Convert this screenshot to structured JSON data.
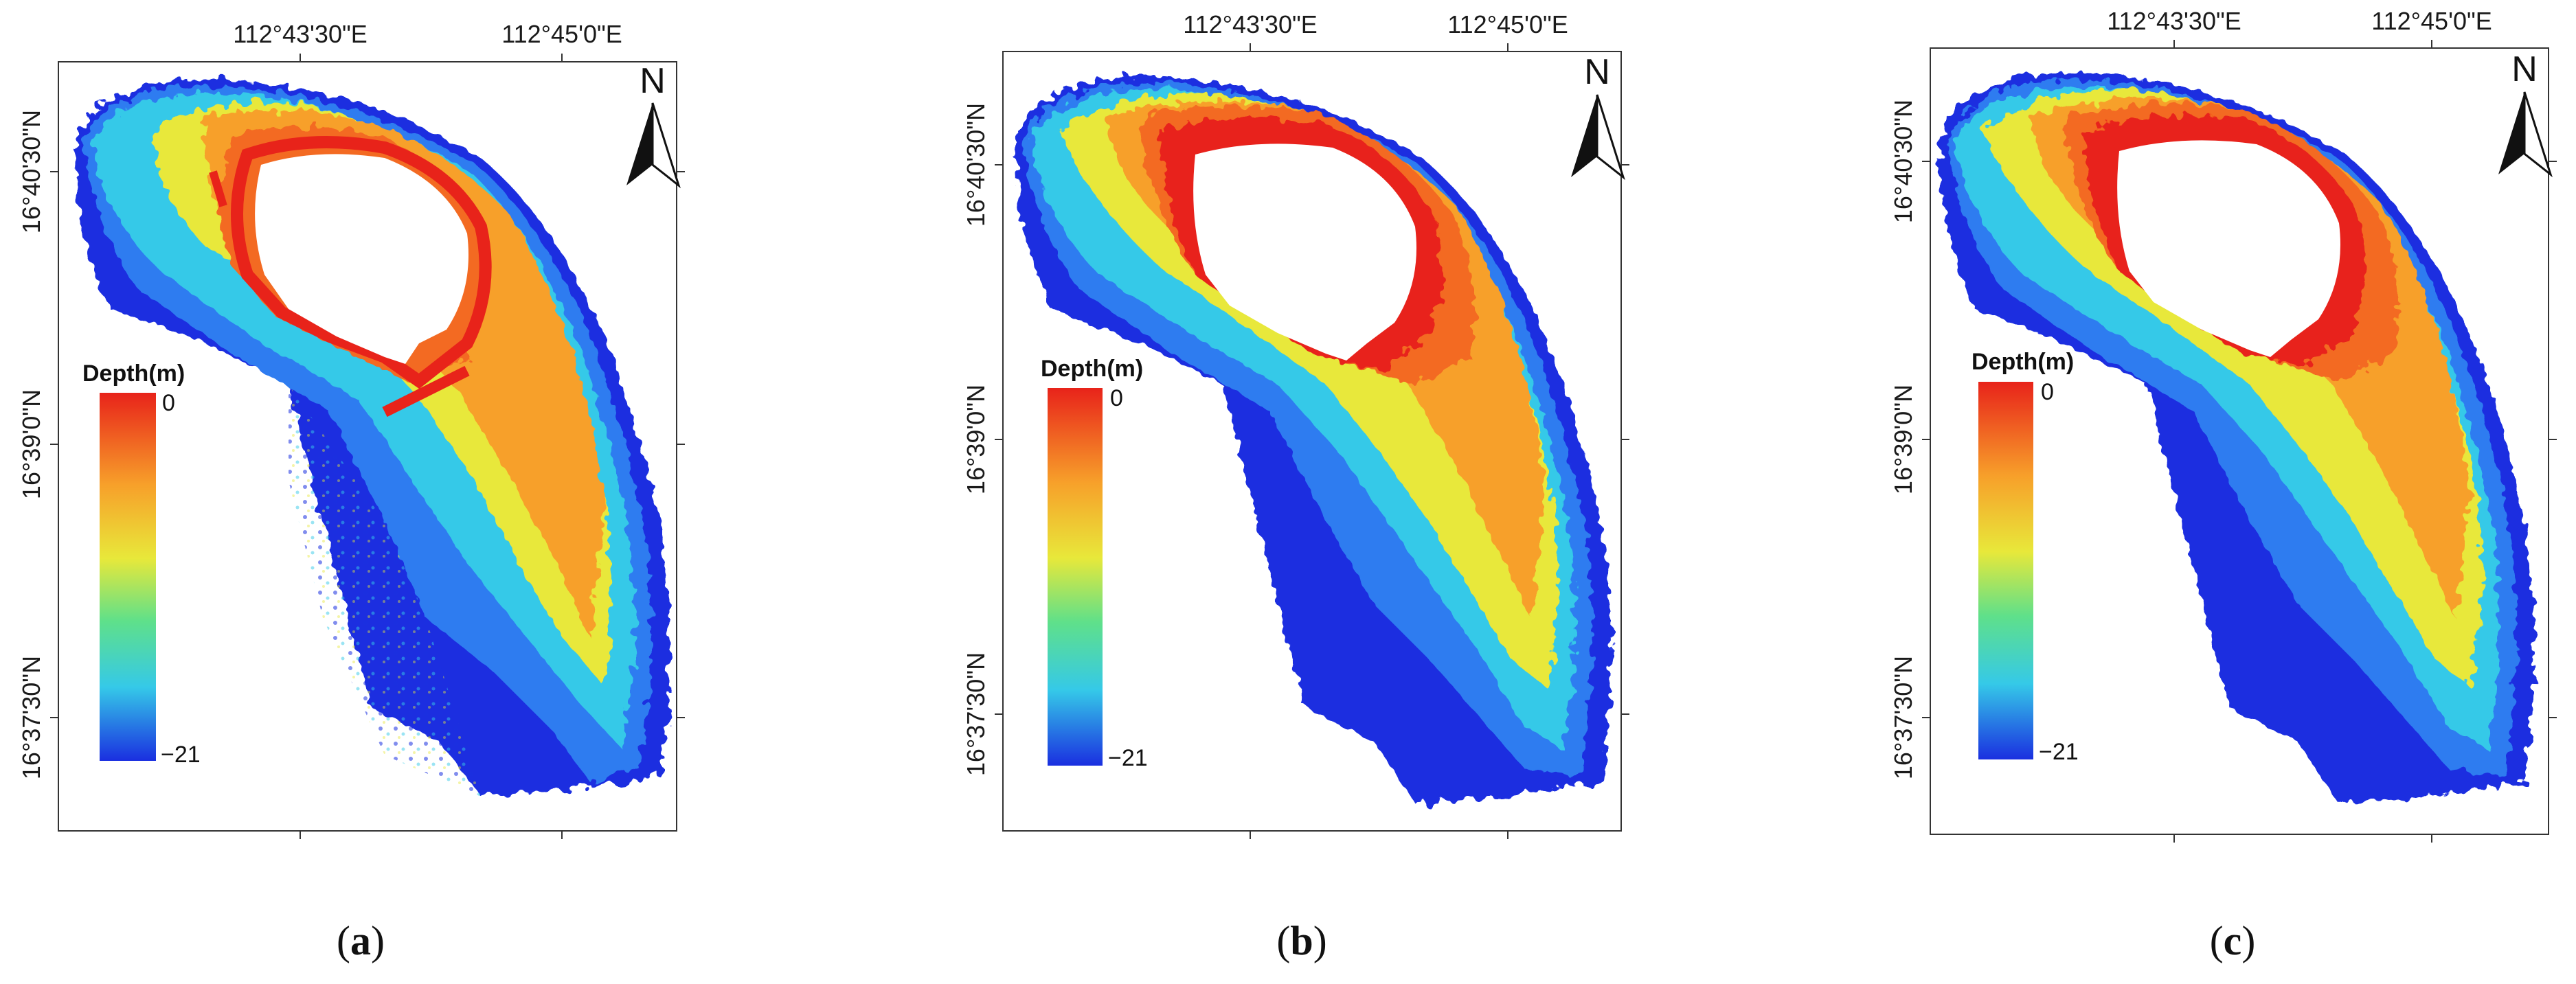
{
  "figure": {
    "panels": [
      {
        "id": "a",
        "caption_open": "(",
        "caption_letter": "a",
        "caption_close": ")",
        "x_ticks": [
          "112°43'30\"E",
          "112°45'0\"E"
        ],
        "y_ticks": [
          "16°40'30\"N",
          "16°39'0\"N",
          "16°37'30\"N"
        ],
        "legend": {
          "title": "Depth(m)",
          "max_label": "0",
          "min_label": "−21"
        },
        "north_label": "N"
      },
      {
        "id": "b",
        "caption_open": "(",
        "caption_letter": "b",
        "caption_close": ")",
        "x_ticks": [
          "112°43'30\"E",
          "112°45'0\"E"
        ],
        "y_ticks": [
          "16°40'30\"N",
          "16°39'0\"N",
          "16°37'30\"N"
        ],
        "legend": {
          "title": "Depth(m)",
          "max_label": "0",
          "min_label": "−21"
        },
        "north_label": "N"
      },
      {
        "id": "c",
        "caption_open": "(",
        "caption_letter": "c",
        "caption_close": ")",
        "x_ticks": [
          "112°43'30\"E",
          "112°45'0\"E"
        ],
        "y_ticks": [
          "16°40'30\"N",
          "16°39'0\"N",
          "16°37'30\"N"
        ],
        "legend": {
          "title": "Depth(m)",
          "max_label": "0",
          "min_label": "−21"
        },
        "north_label": "N"
      }
    ],
    "colors": {
      "deep": "#1a2fe0",
      "mid_blue": "#2f7cf0",
      "cyan": "#35c9e8",
      "green": "#5fe08a",
      "yellow": "#e8e83a",
      "orange": "#f7a02a",
      "orange_red": "#f36a20",
      "red": "#e8231a",
      "land": "#ffffff"
    }
  }
}
